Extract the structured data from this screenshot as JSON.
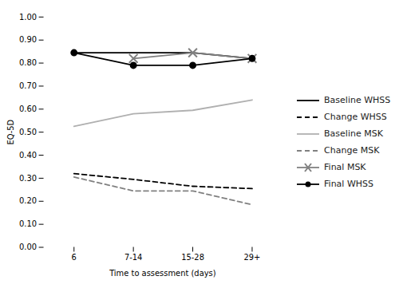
{
  "chart_data": {
    "type": "line",
    "categories": [
      "6",
      "7-14",
      "15-28",
      "29+"
    ],
    "series": [
      {
        "name": "Baseline WHSS",
        "color": "#000000",
        "line_style": "solid",
        "values": [
          0.845,
          0.845,
          0.845,
          0.82
        ]
      },
      {
        "name": "Change WHSS",
        "color": "#000000",
        "line_style": "dashed",
        "values": [
          0.32,
          0.295,
          0.265,
          0.255
        ]
      },
      {
        "name": "Baseline MSK",
        "color": "#b0b0b0",
        "line_style": "solid",
        "values": [
          0.525,
          0.58,
          0.595,
          0.64
        ]
      },
      {
        "name": "Change MSK",
        "color": "#808080",
        "line_style": "dashed",
        "values": [
          0.305,
          0.245,
          0.245,
          0.185
        ]
      },
      {
        "name": "Final MSK",
        "color": "#808080",
        "line_style": "solid",
        "marker": "x",
        "values": [
          null,
          0.82,
          0.845,
          0.82
        ]
      },
      {
        "name": "Final WHSS",
        "color": "#000000",
        "line_style": "solid",
        "marker": "circle",
        "values": [
          0.845,
          0.79,
          0.79,
          0.82
        ]
      }
    ],
    "xlabel": "Time to assessment (days)",
    "ylabel": "EQ-5D",
    "ylim": [
      0.0,
      1.0
    ],
    "yticks": [
      {
        "value": 0.0,
        "label": "0.00"
      },
      {
        "value": 0.1,
        "label": "0.10"
      },
      {
        "value": 0.2,
        "label": "0.20"
      },
      {
        "value": 0.3,
        "label": "0.30"
      },
      {
        "value": 0.4,
        "label": "0.40"
      },
      {
        "value": 0.5,
        "label": "0.50"
      },
      {
        "value": 0.6,
        "label": "0.60"
      },
      {
        "value": 0.7,
        "label": "0.70"
      },
      {
        "value": 0.8,
        "label": "0.80"
      },
      {
        "value": 0.9,
        "label": "0.90"
      },
      {
        "value": 1.0,
        "label": "1.00"
      }
    ],
    "grid": false,
    "legend": "right"
  }
}
